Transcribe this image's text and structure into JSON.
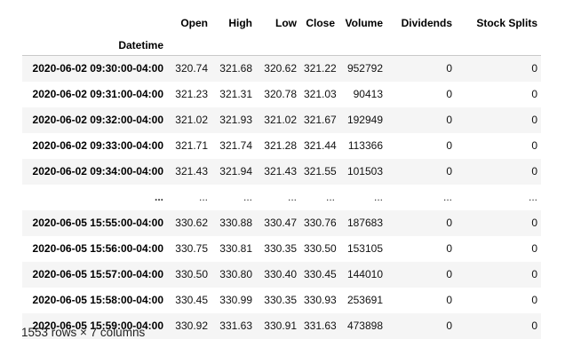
{
  "dataframe": {
    "columns": [
      "Open",
      "High",
      "Low",
      "Close",
      "Volume",
      "Dividends",
      "Stock Splits"
    ],
    "index_name": "Datetime",
    "rows": [
      {
        "index": "2020-06-02 09:30:00-04:00",
        "cells": [
          "320.74",
          "321.68",
          "320.62",
          "321.22",
          "952792",
          "0",
          "0"
        ]
      },
      {
        "index": "2020-06-02 09:31:00-04:00",
        "cells": [
          "321.23",
          "321.31",
          "320.78",
          "321.03",
          "90413",
          "0",
          "0"
        ]
      },
      {
        "index": "2020-06-02 09:32:00-04:00",
        "cells": [
          "321.02",
          "321.93",
          "321.02",
          "321.67",
          "192949",
          "0",
          "0"
        ]
      },
      {
        "index": "2020-06-02 09:33:00-04:00",
        "cells": [
          "321.71",
          "321.74",
          "321.28",
          "321.44",
          "113366",
          "0",
          "0"
        ]
      },
      {
        "index": "2020-06-02 09:34:00-04:00",
        "cells": [
          "321.43",
          "321.94",
          "321.43",
          "321.55",
          "101503",
          "0",
          "0"
        ]
      },
      {
        "index": "...",
        "cells": [
          "...",
          "...",
          "...",
          "...",
          "...",
          "...",
          "..."
        ]
      },
      {
        "index": "2020-06-05 15:55:00-04:00",
        "cells": [
          "330.62",
          "330.88",
          "330.47",
          "330.76",
          "187683",
          "0",
          "0"
        ]
      },
      {
        "index": "2020-06-05 15:56:00-04:00",
        "cells": [
          "330.75",
          "330.81",
          "330.35",
          "330.50",
          "153105",
          "0",
          "0"
        ]
      },
      {
        "index": "2020-06-05 15:57:00-04:00",
        "cells": [
          "330.50",
          "330.80",
          "330.40",
          "330.45",
          "144010",
          "0",
          "0"
        ]
      },
      {
        "index": "2020-06-05 15:58:00-04:00",
        "cells": [
          "330.45",
          "330.99",
          "330.35",
          "330.93",
          "253691",
          "0",
          "0"
        ]
      },
      {
        "index": "2020-06-05 15:59:00-04:00",
        "cells": [
          "330.92",
          "331.63",
          "330.91",
          "331.63",
          "473898",
          "0",
          "0"
        ]
      }
    ],
    "shape_text": "1553 rows × 7 columns"
  }
}
